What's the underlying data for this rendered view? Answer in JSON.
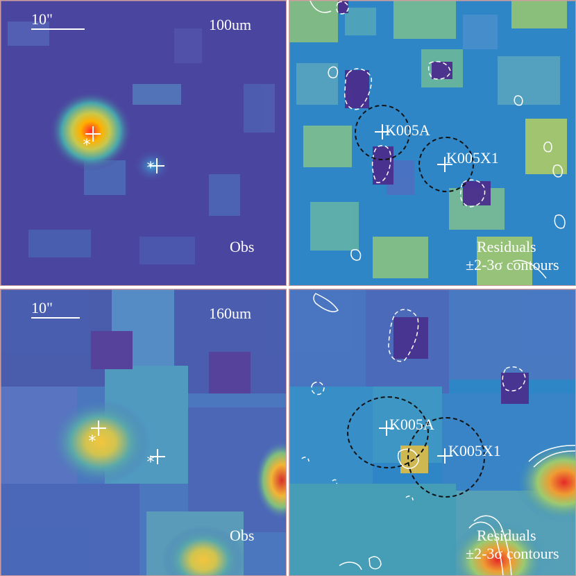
{
  "panels": {
    "top_left": {
      "scale_label": "10\"",
      "band_label": "100um",
      "corner_label": "Obs"
    },
    "top_right": {
      "source_a": "K005A",
      "source_b": "K005X1",
      "residual_title": "Residuals",
      "contour_note": "±2-3σ contours"
    },
    "bottom_left": {
      "scale_label": "10\"",
      "band_label": "160um",
      "corner_label": "Obs"
    },
    "bottom_right": {
      "source_a": "K005A",
      "source_b": "K005X1",
      "residual_title": "Residuals",
      "contour_note": "±2-3σ contours"
    }
  },
  "colors": {
    "background": "#4b3f98",
    "frame": "#cf9d9d",
    "marker": "#ffffff",
    "dashed_circle": "#111111"
  },
  "icons": {
    "source_marker": "cross-icon",
    "asterisk_marker": "asterisk-icon"
  }
}
